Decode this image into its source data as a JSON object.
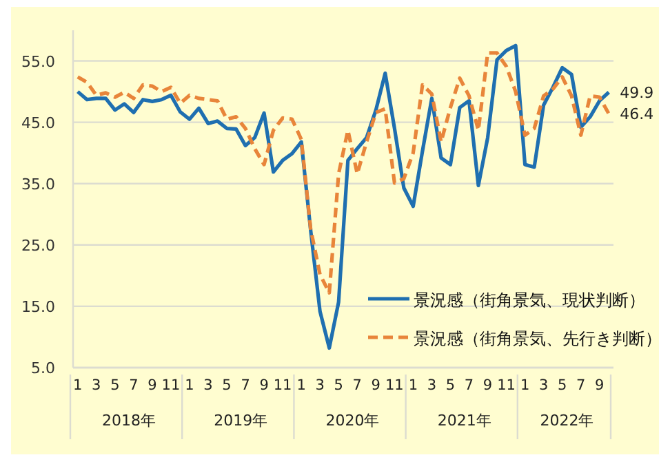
{
  "chart_data": {
    "type": "line",
    "categories": [
      "1",
      null,
      "3",
      null,
      "5",
      null,
      "7",
      null,
      "9",
      null,
      "11",
      null,
      "1",
      null,
      "3",
      null,
      "5",
      null,
      "7",
      null,
      "9",
      null,
      "11",
      null,
      "1",
      null,
      "3",
      null,
      "5",
      null,
      "7",
      null,
      "9",
      null,
      "11",
      null,
      "1",
      null,
      "3",
      null,
      "5",
      null,
      "7",
      null,
      "9",
      null,
      "11",
      null,
      "1",
      null,
      "3",
      null,
      "5",
      null,
      "7",
      null,
      "9",
      null
    ],
    "series": [
      {
        "name": "景況感（街角景気、現状判断）",
        "color": "#1f6fb0",
        "line_style": "solid",
        "values": [
          50.0,
          48.7,
          48.9,
          48.9,
          47.0,
          48.0,
          46.6,
          48.7,
          48.4,
          48.7,
          49.4,
          46.7,
          45.5,
          47.3,
          44.8,
          45.2,
          44.0,
          43.9,
          41.2,
          42.5,
          46.5,
          36.9,
          38.8,
          39.9,
          41.8,
          27.4,
          14.2,
          8.2,
          15.7,
          38.8,
          40.7,
          42.5,
          47.0,
          53.0,
          44.0,
          34.3,
          31.3,
          40.3,
          48.9,
          39.2,
          38.1,
          47.4,
          48.5,
          34.7,
          42.5,
          55.2,
          56.7,
          57.5,
          38.1,
          37.7,
          47.8,
          50.7,
          53.9,
          52.8,
          44.2,
          45.9,
          48.5,
          49.9
        ],
        "value_labels": [
          null,
          null,
          null,
          null,
          null,
          null,
          null,
          null,
          null,
          null,
          null,
          null,
          null,
          null,
          null,
          null,
          null,
          null,
          null,
          null,
          null,
          null,
          null,
          null,
          null,
          null,
          null,
          null,
          null,
          null,
          null,
          null,
          null,
          null,
          null,
          null,
          null,
          null,
          null,
          null,
          null,
          null,
          null,
          null,
          null,
          null,
          null,
          null,
          null,
          null,
          null,
          null,
          null,
          null,
          null,
          null,
          null,
          "49.9"
        ]
      },
      {
        "name": "景況感（街角景気、先行き判断）",
        "color": "#e8853a",
        "line_style": "dashed",
        "values": [
          52.4,
          51.5,
          49.4,
          49.8,
          49.1,
          49.9,
          48.9,
          51.1,
          50.9,
          50.0,
          50.7,
          48.1,
          49.4,
          48.9,
          48.7,
          48.5,
          45.5,
          45.9,
          44.0,
          40.7,
          38.1,
          43.7,
          45.7,
          45.5,
          42.2,
          27.6,
          20.2,
          17.2,
          36.6,
          43.7,
          36.6,
          41.8,
          46.6,
          47.2,
          35.1,
          35.8,
          40.0,
          51.1,
          49.6,
          41.8,
          47.4,
          52.2,
          49.3,
          43.7,
          56.3,
          56.3,
          54.1,
          50.0,
          42.9,
          44.0,
          49.3,
          50.4,
          52.4,
          49.3,
          42.9,
          49.3,
          49.1,
          46.4
        ],
        "value_labels": [
          null,
          null,
          null,
          null,
          null,
          null,
          null,
          null,
          null,
          null,
          null,
          null,
          null,
          null,
          null,
          null,
          null,
          null,
          null,
          null,
          null,
          null,
          null,
          null,
          null,
          null,
          null,
          null,
          null,
          null,
          null,
          null,
          null,
          null,
          null,
          null,
          null,
          null,
          null,
          null,
          null,
          null,
          null,
          null,
          null,
          null,
          null,
          null,
          null,
          null,
          null,
          null,
          null,
          null,
          null,
          null,
          null,
          "46.4"
        ]
      }
    ],
    "annotations": [
      "2018年",
      "2019年",
      "2020年",
      "2021年",
      "2022年"
    ],
    "ylim": [
      5,
      60
    ],
    "yticks": [
      {
        "value": 5,
        "label": "5.0"
      },
      {
        "value": 15,
        "label": "15.0"
      },
      {
        "value": 25,
        "label": "25.0"
      },
      {
        "value": 35,
        "label": "35.0"
      },
      {
        "value": 45,
        "label": "45.0"
      },
      {
        "value": 55,
        "label": "55.0"
      }
    ],
    "grid": "y",
    "legend": "bottom right",
    "marker": "none"
  }
}
